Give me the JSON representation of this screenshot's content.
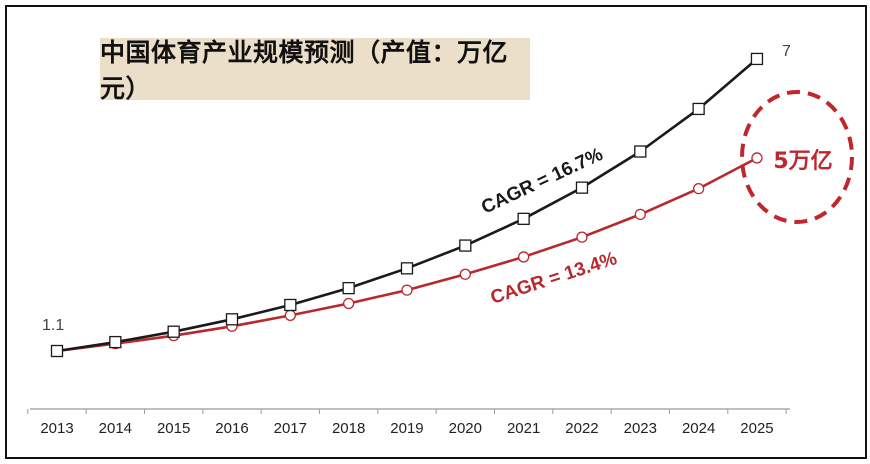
{
  "chart_data": {
    "type": "line",
    "title": "中国体育产业规模预测（产值：万亿元）",
    "categories": [
      "2013",
      "2014",
      "2015",
      "2016",
      "2017",
      "2018",
      "2019",
      "2020",
      "2021",
      "2022",
      "2023",
      "2024",
      "2025"
    ],
    "series": [
      {
        "values": [
          1.1,
          1.28,
          1.49,
          1.74,
          2.03,
          2.37,
          2.77,
          3.23,
          3.77,
          4.4,
          5.13,
          5.99,
          7.0
        ]
      },
      {
        "values": [
          1.1,
          1.25,
          1.41,
          1.6,
          1.82,
          2.06,
          2.33,
          2.65,
          3.0,
          3.4,
          3.86,
          4.38,
          5.0
        ]
      }
    ],
    "data_labels": {
      "start": "1.1",
      "end": "7"
    },
    "annotations": {
      "cagr_black": "CAGR = 16.7%",
      "cagr_red": "CAGR = 13.4%",
      "callout": "5万亿"
    },
    "colors": {
      "black_series": "#1a1a1a",
      "red_series": "#b8282d",
      "callout": "#c0272d",
      "title_bg": "#ecdfc9"
    },
    "grid": false,
    "legend": "none"
  }
}
